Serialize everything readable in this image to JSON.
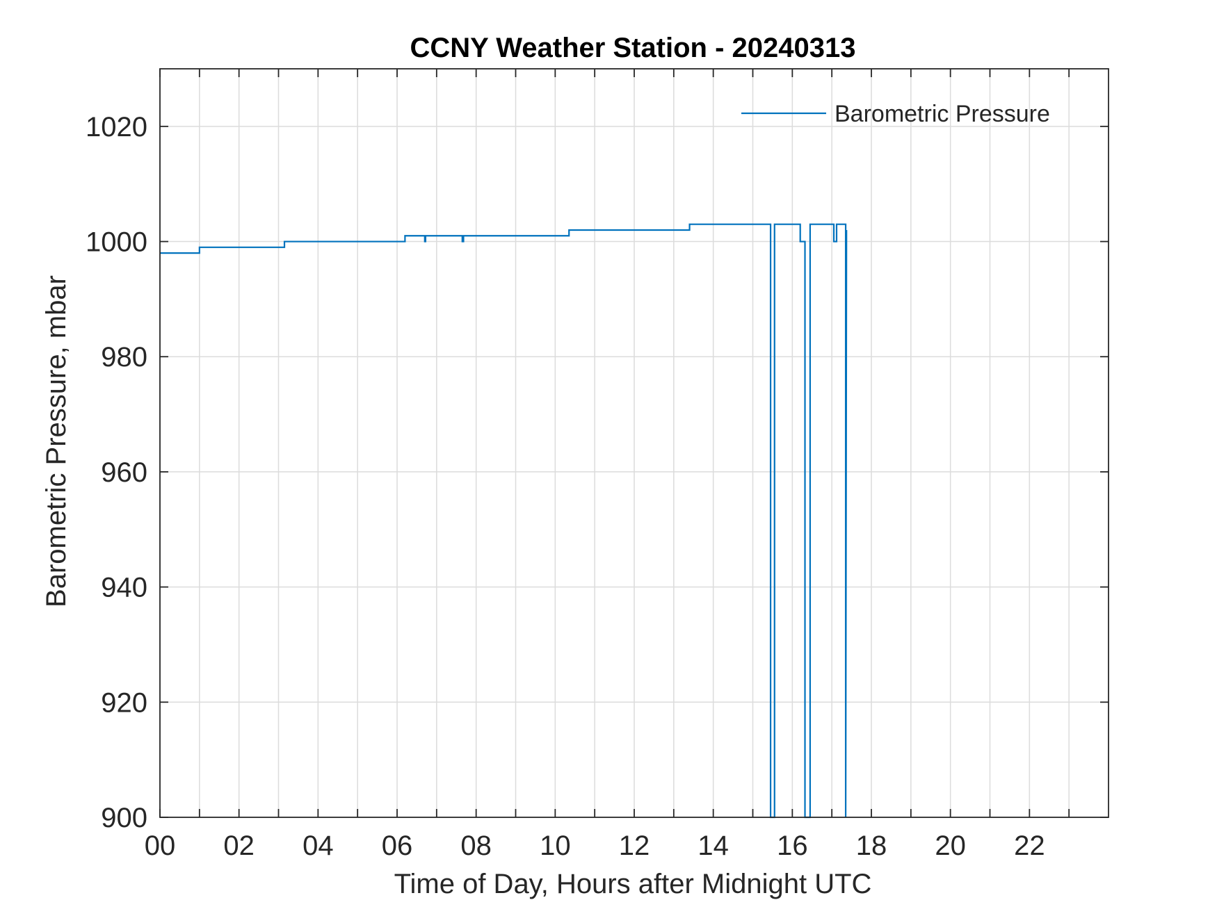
{
  "chart_data": {
    "type": "line",
    "title": "CCNY Weather Station - 20240313",
    "xlabel": "Time of Day, Hours after Midnight UTC",
    "ylabel": "Barometric Pressure, mbar",
    "xlim": [
      0,
      24
    ],
    "ylim": [
      900,
      1030
    ],
    "x_ticks": [
      0,
      2,
      4,
      6,
      8,
      10,
      12,
      14,
      16,
      18,
      20,
      22
    ],
    "x_tick_labels": [
      "00",
      "02",
      "04",
      "06",
      "08",
      "10",
      "12",
      "14",
      "16",
      "18",
      "20",
      "22"
    ],
    "x_minor_grid_step": 1,
    "y_ticks": [
      900,
      920,
      940,
      960,
      980,
      1000,
      1020
    ],
    "y_tick_labels": [
      "900",
      "920",
      "940",
      "960",
      "980",
      "1000",
      "1020"
    ],
    "grid": true,
    "legend": {
      "position": "top-right",
      "entries": [
        "Barometric Pressure"
      ]
    },
    "series": [
      {
        "name": "Barometric Pressure",
        "color": "#0072BD",
        "x": [
          0,
          1.0,
          1.0,
          3.15,
          3.15,
          6.2,
          6.2,
          6.7,
          6.7,
          6.72,
          6.72,
          7.65,
          7.65,
          7.68,
          7.68,
          10.35,
          10.35,
          13.4,
          13.4,
          15.45,
          15.45,
          15.55,
          15.55,
          16.2,
          16.2,
          16.32,
          16.32,
          16.45,
          16.45,
          17.05,
          17.05,
          17.12,
          17.12,
          17.35,
          17.35,
          17.37
        ],
        "y": [
          998,
          998,
          999,
          999,
          1000,
          1000,
          1001,
          1001,
          1000,
          1000,
          1001,
          1001,
          1000,
          1000,
          1001,
          1001,
          1002,
          1002,
          1003,
          1003,
          900,
          900,
          1003,
          1003,
          1000,
          1000,
          900,
          900,
          1003,
          1003,
          1000,
          1000,
          1003,
          1003,
          900,
          1002
        ]
      }
    ]
  }
}
